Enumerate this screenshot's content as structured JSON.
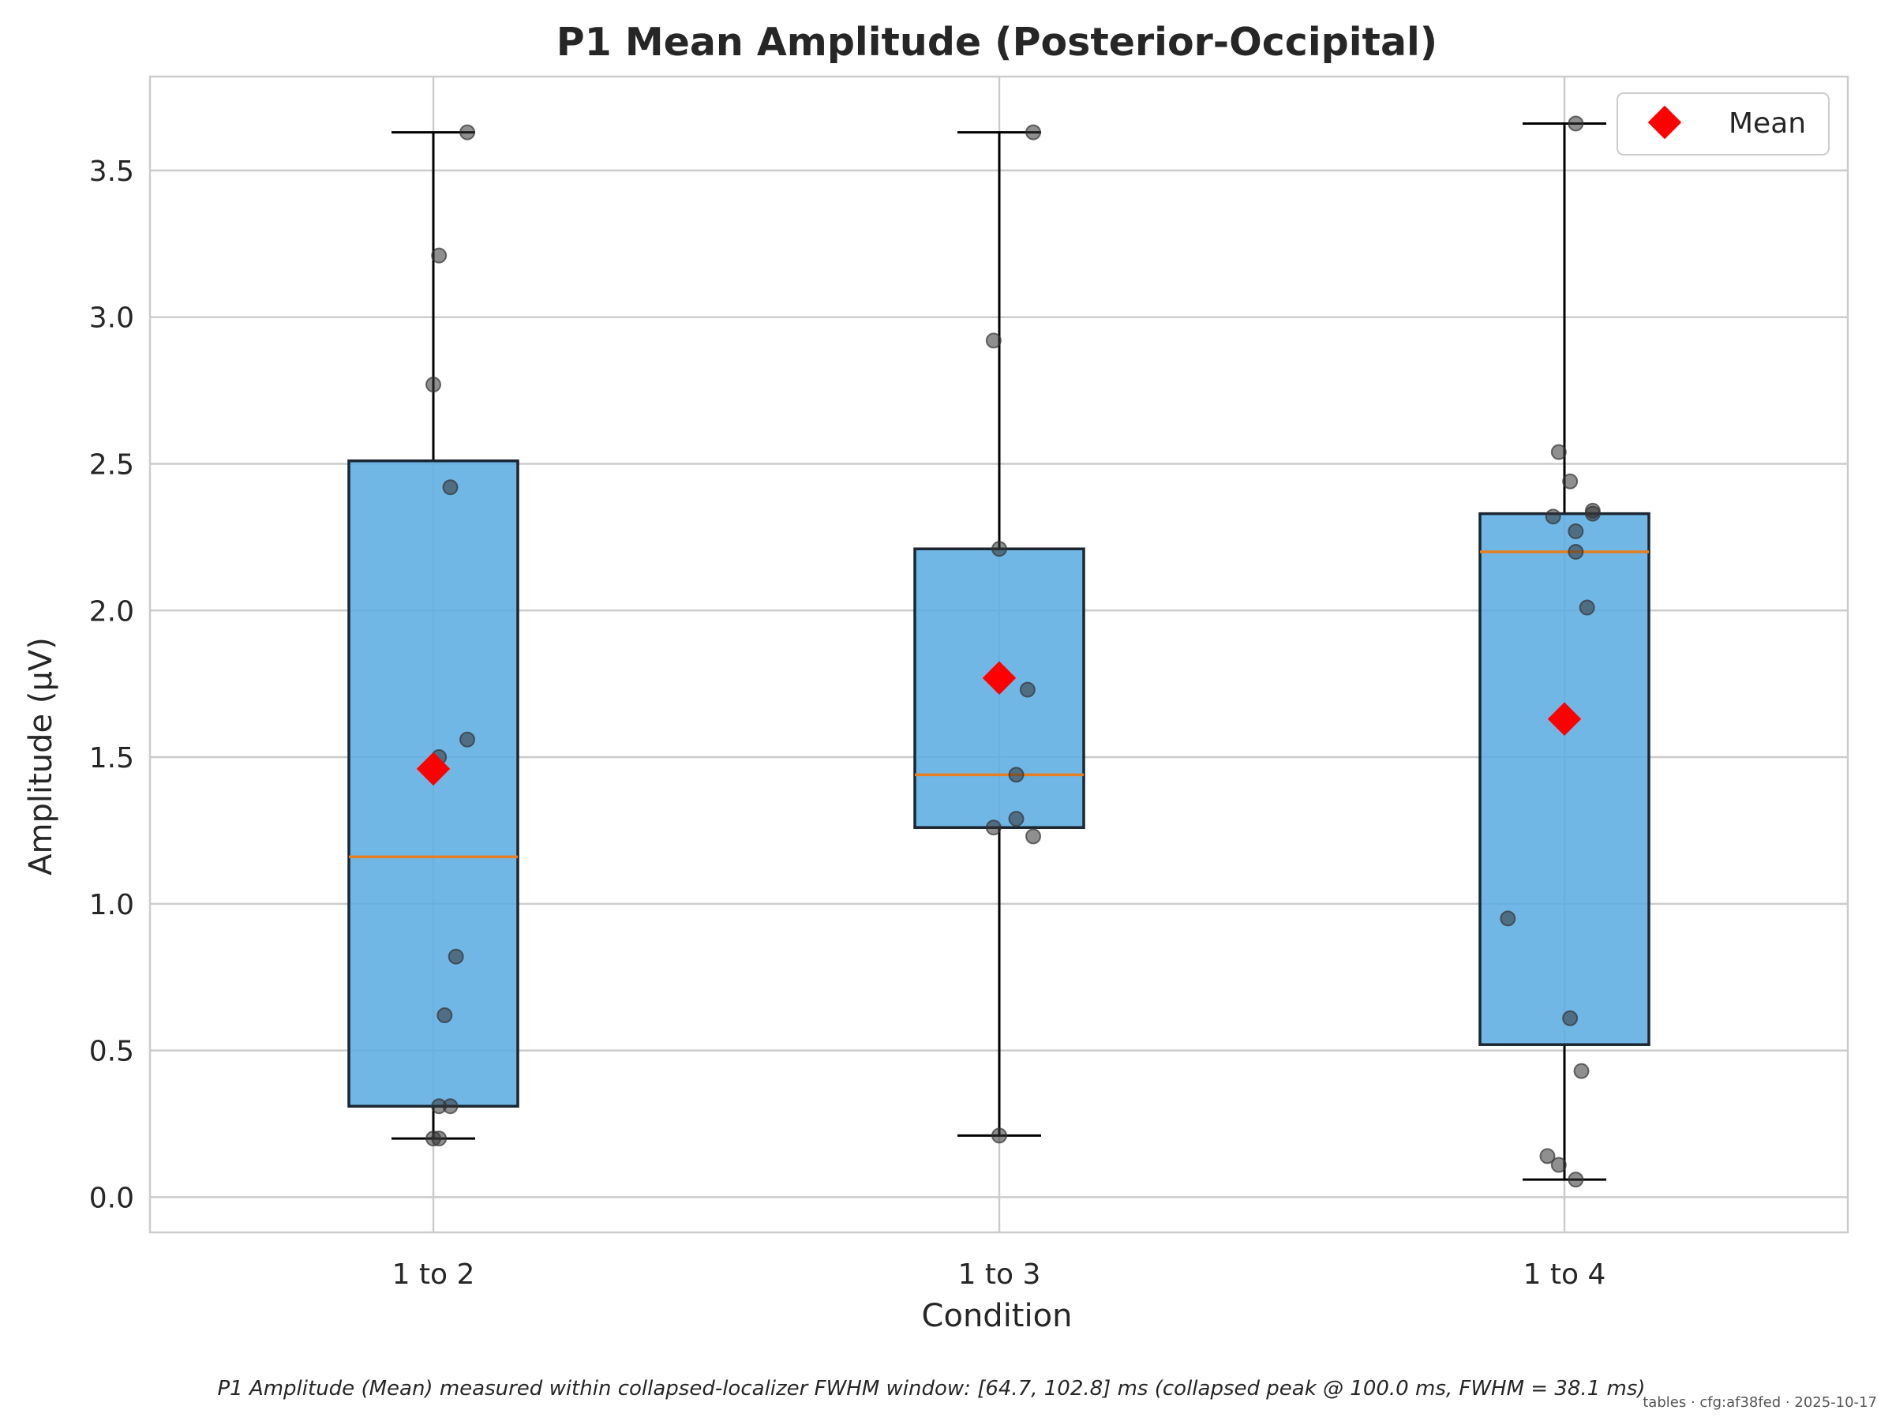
{
  "chart_data": {
    "type": "box",
    "title": "P1 Mean Amplitude (Posterior-Occipital)",
    "xlabel": "Condition",
    "ylabel": "Amplitude (µV)",
    "ylim": [
      -0.12,
      3.82
    ],
    "yticks": [
      0.0,
      0.5,
      1.0,
      1.5,
      2.0,
      2.5,
      3.0,
      3.5
    ],
    "ytick_labels": [
      "0.0",
      "0.5",
      "1.0",
      "1.5",
      "2.0",
      "2.5",
      "3.0",
      "3.5"
    ],
    "grid": true,
    "legend": {
      "placement": "top-right",
      "entries": [
        {
          "label": "Mean",
          "marker": "diamond",
          "color": "#ff0000"
        }
      ]
    },
    "categories": [
      "1 to 2",
      "1 to 3",
      "1 to 4"
    ],
    "boxes": [
      {
        "category": "1 to 2",
        "whisker_low": 0.2,
        "q1": 0.31,
        "median": 1.16,
        "q3": 2.51,
        "whisker_high": 3.63,
        "mean": 1.46,
        "points": [
          {
            "jitter": 0.01,
            "y": 0.2
          },
          {
            "jitter": 0.0,
            "y": 0.2
          },
          {
            "jitter": 0.01,
            "y": 0.31
          },
          {
            "jitter": 0.03,
            "y": 0.31
          },
          {
            "jitter": 0.02,
            "y": 0.62
          },
          {
            "jitter": 0.04,
            "y": 0.82
          },
          {
            "jitter": 0.01,
            "y": 1.5
          },
          {
            "jitter": 0.06,
            "y": 1.56
          },
          {
            "jitter": 0.03,
            "y": 2.42
          },
          {
            "jitter": 0.0,
            "y": 2.77
          },
          {
            "jitter": 0.01,
            "y": 3.21
          },
          {
            "jitter": 0.06,
            "y": 3.63
          }
        ]
      },
      {
        "category": "1 to 3",
        "whisker_low": 0.21,
        "q1": 1.26,
        "median": 1.44,
        "q3": 2.21,
        "whisker_high": 3.63,
        "mean": 1.77,
        "points": [
          {
            "jitter": 0.0,
            "y": 0.21
          },
          {
            "jitter": 0.06,
            "y": 1.23
          },
          {
            "jitter": -0.01,
            "y": 1.26
          },
          {
            "jitter": 0.03,
            "y": 1.29
          },
          {
            "jitter": 0.03,
            "y": 1.44
          },
          {
            "jitter": 0.05,
            "y": 1.73
          },
          {
            "jitter": 0.0,
            "y": 2.21
          },
          {
            "jitter": -0.01,
            "y": 2.92
          },
          {
            "jitter": 0.06,
            "y": 3.63
          }
        ]
      },
      {
        "category": "1 to 4",
        "whisker_low": 0.06,
        "q1": 0.52,
        "median": 2.2,
        "q3": 2.33,
        "whisker_high": 3.66,
        "mean": 1.63,
        "points": [
          {
            "jitter": 0.02,
            "y": 0.06
          },
          {
            "jitter": -0.01,
            "y": 0.11
          },
          {
            "jitter": -0.03,
            "y": 0.14
          },
          {
            "jitter": 0.03,
            "y": 0.43
          },
          {
            "jitter": 0.01,
            "y": 0.61
          },
          {
            "jitter": -0.1,
            "y": 0.95
          },
          {
            "jitter": 0.04,
            "y": 2.01
          },
          {
            "jitter": 0.02,
            "y": 2.2
          },
          {
            "jitter": 0.02,
            "y": 2.27
          },
          {
            "jitter": -0.02,
            "y": 2.32
          },
          {
            "jitter": 0.05,
            "y": 2.33
          },
          {
            "jitter": 0.05,
            "y": 2.34
          },
          {
            "jitter": 0.01,
            "y": 2.44
          },
          {
            "jitter": -0.01,
            "y": 2.54
          },
          {
            "jitter": 0.02,
            "y": 3.66
          }
        ]
      }
    ],
    "colors": {
      "box_fill": "#5dade2",
      "box_edge": "#1b2631",
      "median": "#e67e22",
      "whisker": "#000000",
      "points": "#333333",
      "mean": "#ff0000",
      "grid": "#cccccc"
    },
    "caption": "P1 Amplitude (Mean) measured within collapsed-localizer FWHM window: [64.7, 102.8] ms (collapsed peak @ 100.0 ms, FWHM = 38.1 ms)",
    "stamp": "tables · cfg:af38fed · 2025-10-17"
  }
}
